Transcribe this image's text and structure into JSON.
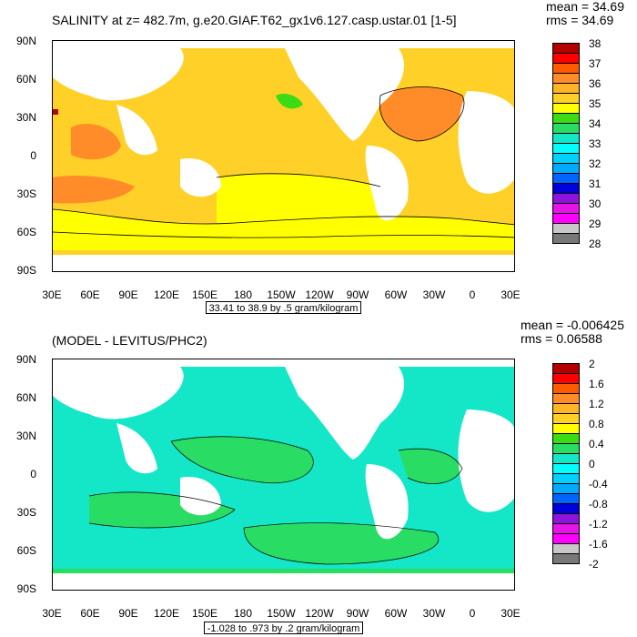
{
  "top": {
    "title": "SALINITY at z= 482.7m, g.e20.GIAF.T62_gx1v6.127.casp.ustar.01 [1-5]",
    "mean": "mean = 34.69",
    "rms": "rms = 34.69",
    "range_label": "33.41 to 38.9 by .5 gram/kilogram",
    "colorbar": {
      "labels": [
        "38",
        "37",
        "36",
        "35",
        "34",
        "33",
        "32",
        "31",
        "30",
        "29",
        "28"
      ],
      "colors": [
        "#b40000",
        "#ff0000",
        "#ff5a00",
        "#ff8c28",
        "#ffb428",
        "#ffd028",
        "#ffff00",
        "#3cdc14",
        "#28dc64",
        "#14e6c8",
        "#00ffff",
        "#00d2ff",
        "#00aaff",
        "#0064ff",
        "#0000dc",
        "#8c14dc",
        "#e614e6",
        "#ff00ff",
        "#c8c8c8",
        "#787878"
      ]
    }
  },
  "bottom": {
    "title": "(MODEL - LEVITUS/PHC2)",
    "mean": "mean = -0.006425",
    "rms": "rms = 0.06588",
    "range_label": "-1.028 to .973 by .2 gram/kilogram",
    "colorbar": {
      "labels": [
        "2",
        "1.6",
        "1.2",
        "0.8",
        "0.4",
        "0",
        "-0.4",
        "-0.8",
        "-1.2",
        "-1.6",
        "-2"
      ],
      "colors": [
        "#b40000",
        "#ff0000",
        "#ff5a00",
        "#ff8c28",
        "#ffb428",
        "#ffd028",
        "#ffff00",
        "#3cdc14",
        "#28dc64",
        "#14e6c8",
        "#00ffff",
        "#00d2ff",
        "#00aaff",
        "#0064ff",
        "#0000dc",
        "#8c14dc",
        "#e614e6",
        "#ff00ff",
        "#c8c8c8",
        "#787878"
      ]
    }
  },
  "axes": {
    "lat_labels": [
      "90N",
      "60N",
      "30N",
      "0",
      "30S",
      "60S",
      "90S"
    ],
    "lon_labels": [
      "30E",
      "60E",
      "90E",
      "120E",
      "150E",
      "180",
      "150W",
      "120W",
      "90W",
      "60W",
      "30W",
      "0",
      "30E"
    ]
  },
  "colors": {
    "top_ocean_main": "#ffd028",
    "top_ocean_fresh": "#ffff00",
    "top_ocean_salty": "#ff8c28",
    "top_highlight": "#b40000",
    "bottom_ocean_main": "#28dc64",
    "bottom_ocean_cyan": "#14e6c8",
    "land": "#ffffff"
  }
}
